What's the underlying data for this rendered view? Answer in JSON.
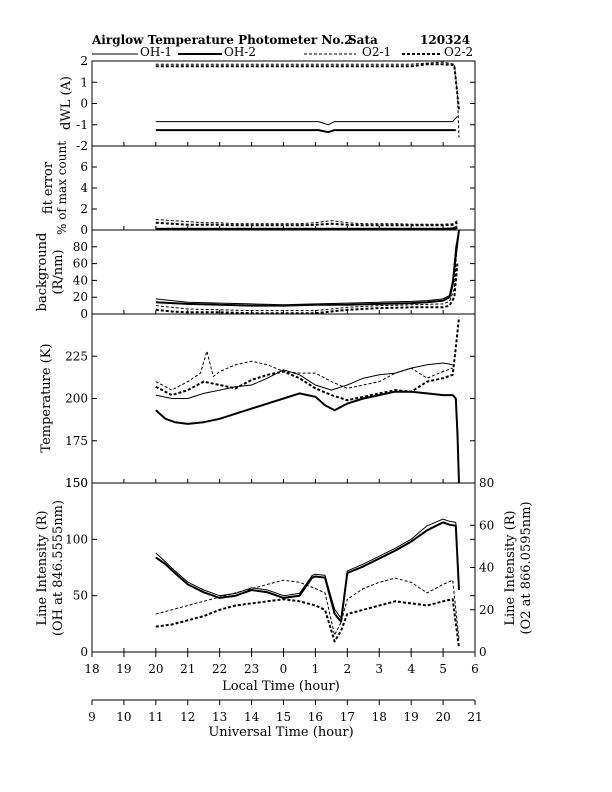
{
  "header": {
    "title": "Airglow Temperature Photometer No.2",
    "site": "Sata",
    "date": "120324"
  },
  "legend": [
    "OH-1",
    "OH-2",
    "O2-1",
    "O2-2"
  ],
  "series_styles": {
    "OH-1": {
      "color": "#000000",
      "stroke_style": "solid-thin"
    },
    "OH-2": {
      "color": "#000000",
      "stroke_style": "solid-thick"
    },
    "O2-1": {
      "color": "#000000",
      "stroke_style": "dashed-thin"
    },
    "O2-2": {
      "color": "#000000",
      "stroke_style": "dashed-thick"
    }
  },
  "x_axes": {
    "local": {
      "label": "Local Time (hour)",
      "ticks": [
        "18",
        "19",
        "20",
        "21",
        "22",
        "23",
        "0",
        "1",
        "2",
        "3",
        "4",
        "5",
        "6"
      ]
    },
    "universal": {
      "label": "Universal Time (hour)",
      "ticks": [
        "9",
        "10",
        "11",
        "12",
        "13",
        "14",
        "15",
        "16",
        "17",
        "18",
        "19",
        "20",
        "21"
      ]
    }
  },
  "chart_data": [
    {
      "type": "line",
      "panel": "dwl",
      "ylabel": "dWL (A)",
      "ylim": [
        -2,
        2
      ],
      "yticks": [
        "2",
        "1",
        "0",
        "-1",
        "-2"
      ],
      "x_unit": "Local Time (hour), values past 24 = next day",
      "series": [
        {
          "name": "OH-1",
          "x": [
            20,
            21,
            22,
            23,
            24,
            25,
            25.1,
            25.4,
            25.6,
            26,
            27,
            28,
            28.9,
            29.3,
            29.45
          ],
          "y": [
            -0.85,
            -0.85,
            -0.85,
            -0.85,
            -0.85,
            -0.85,
            -0.85,
            -1.0,
            -0.85,
            -0.85,
            -0.85,
            -0.85,
            -0.85,
            -0.85,
            -0.6
          ]
        },
        {
          "name": "OH-2",
          "x": [
            20,
            21,
            22,
            23,
            24,
            25,
            25.1,
            25.4,
            25.6,
            26,
            27,
            28,
            28.9,
            29.3,
            29.4
          ],
          "y": [
            -1.25,
            -1.25,
            -1.25,
            -1.25,
            -1.25,
            -1.25,
            -1.25,
            -1.35,
            -1.25,
            -1.25,
            -1.25,
            -1.25,
            -1.25,
            -1.25,
            -1.25
          ]
        },
        {
          "name": "O2-1",
          "x": [
            20,
            21,
            22,
            23,
            24,
            25,
            26,
            27,
            28,
            28.5,
            29,
            29.35,
            29.45,
            29.5
          ],
          "y": [
            1.85,
            1.85,
            1.85,
            1.85,
            1.85,
            1.85,
            1.85,
            1.85,
            1.85,
            1.9,
            1.95,
            1.85,
            0.5,
            -1.6
          ]
        },
        {
          "name": "O2-2",
          "x": [
            20,
            21,
            22,
            23,
            24,
            25,
            26,
            27,
            28,
            28.5,
            29,
            29.35,
            29.5
          ],
          "y": [
            1.75,
            1.75,
            1.75,
            1.75,
            1.75,
            1.75,
            1.75,
            1.75,
            1.75,
            1.85,
            1.85,
            1.8,
            -0.3
          ]
        }
      ]
    },
    {
      "type": "line",
      "panel": "fit",
      "ylabel": "fit error",
      "ylabel2": "% of max count",
      "ylim": [
        0,
        8
      ],
      "yticks": [
        "6",
        "4",
        "2",
        "0"
      ],
      "series": [
        {
          "name": "OH-1",
          "x": [
            20,
            21,
            22,
            23,
            24,
            25,
            26,
            27,
            28,
            29,
            29.3,
            29.45
          ],
          "y": [
            0.15,
            0.15,
            0.15,
            0.15,
            0.15,
            0.15,
            0.15,
            0.15,
            0.15,
            0.15,
            0.2,
            0.4
          ]
        },
        {
          "name": "OH-2",
          "x": [
            20,
            21,
            22,
            23,
            24,
            25,
            26,
            27,
            28,
            29,
            29.3,
            29.45
          ],
          "y": [
            0.1,
            0.1,
            0.1,
            0.1,
            0.1,
            0.1,
            0.1,
            0.1,
            0.1,
            0.1,
            0.1,
            0.2
          ]
        },
        {
          "name": "O2-1",
          "x": [
            20,
            20.5,
            21,
            21.5,
            22,
            22.5,
            23,
            23.5,
            24,
            24.5,
            25,
            25.5,
            26,
            26.5,
            27,
            27.5,
            28,
            28.5,
            29,
            29.3,
            29.45
          ],
          "y": [
            1.0,
            0.9,
            0.8,
            0.7,
            0.7,
            0.6,
            0.6,
            0.6,
            0.6,
            0.6,
            0.7,
            0.9,
            0.7,
            0.6,
            0.6,
            0.6,
            0.55,
            0.55,
            0.55,
            0.6,
            0.9
          ]
        },
        {
          "name": "O2-2",
          "x": [
            20,
            20.5,
            21,
            21.5,
            22,
            22.5,
            23,
            23.5,
            24,
            24.5,
            25,
            25.5,
            26,
            26.5,
            27,
            27.5,
            28,
            28.5,
            29,
            29.3,
            29.45
          ],
          "y": [
            0.7,
            0.6,
            0.5,
            0.5,
            0.5,
            0.45,
            0.45,
            0.45,
            0.45,
            0.45,
            0.5,
            0.6,
            0.5,
            0.45,
            0.45,
            0.45,
            0.45,
            0.45,
            0.45,
            0.5,
            0.7
          ]
        }
      ]
    },
    {
      "type": "line",
      "panel": "bg",
      "ylabel": "background",
      "ylabel2": "(R/nm)",
      "ylim": [
        0,
        100
      ],
      "yticks": [
        "80",
        "60",
        "40",
        "20",
        "0"
      ],
      "series": [
        {
          "name": "OH-1",
          "x": [
            20,
            20.5,
            21,
            22,
            23,
            24,
            25,
            26,
            27,
            28,
            28.5,
            29,
            29.2,
            29.3,
            29.4,
            29.5
          ],
          "y": [
            18,
            16,
            14,
            13,
            12,
            11,
            12,
            13,
            14,
            15,
            16,
            18,
            22,
            40,
            80,
            100
          ]
        },
        {
          "name": "OH-2",
          "x": [
            20,
            20.5,
            21,
            22,
            23,
            24,
            25,
            26,
            27,
            28,
            28.5,
            29,
            29.2,
            29.3,
            29.4,
            29.5
          ],
          "y": [
            14,
            13,
            12,
            11,
            10,
            10,
            11,
            11,
            12,
            13,
            14,
            16,
            20,
            35,
            70,
            100
          ]
        },
        {
          "name": "O2-1",
          "x": [
            20,
            20.5,
            21,
            22,
            23,
            24,
            25,
            25.5,
            26,
            27,
            28,
            29,
            29.2,
            29.35,
            29.45
          ],
          "y": [
            10,
            8,
            6,
            5,
            4,
            4,
            4,
            6,
            8,
            10,
            11,
            12,
            15,
            30,
            90
          ]
        },
        {
          "name": "O2-2",
          "x": [
            20,
            20.5,
            21,
            22,
            23,
            24,
            25,
            25.5,
            26,
            27,
            28,
            29,
            29.2,
            29.35,
            29.45
          ],
          "y": [
            5,
            3,
            2,
            2,
            1,
            1,
            1,
            3,
            5,
            7,
            8,
            8,
            10,
            20,
            60
          ]
        }
      ]
    },
    {
      "type": "line",
      "panel": "temp",
      "ylabel": "Temperature (K)",
      "ylim": [
        150,
        250
      ],
      "yticks": [
        "225",
        "200",
        "175",
        "150"
      ],
      "series": [
        {
          "name": "OH-1",
          "x": [
            20,
            20.5,
            21,
            21.5,
            22,
            22.5,
            23,
            23.5,
            24,
            24.5,
            25,
            25.5,
            26,
            26.5,
            27,
            27.5,
            28,
            28.5,
            29,
            29.3
          ],
          "y": [
            202,
            200,
            200,
            203,
            205,
            207,
            208,
            212,
            217,
            214,
            208,
            205,
            208,
            212,
            214,
            215,
            218,
            220,
            221,
            220
          ]
        },
        {
          "name": "OH-2",
          "x": [
            20,
            20.3,
            20.6,
            21,
            21.5,
            22,
            22.5,
            23,
            23.5,
            24,
            24.5,
            25,
            25.3,
            25.6,
            26,
            26.5,
            27,
            27.5,
            28,
            28.5,
            29,
            29.3,
            29.4,
            29.45,
            29.5
          ],
          "y": [
            193,
            188,
            186,
            185,
            186,
            188,
            191,
            194,
            197,
            200,
            203,
            201,
            196,
            193,
            197,
            200,
            202,
            204,
            204,
            203,
            202,
            202,
            200,
            180,
            150
          ]
        },
        {
          "name": "O2-1",
          "x": [
            20,
            20.5,
            21,
            21.4,
            21.6,
            21.8,
            22,
            22.5,
            23,
            23.5,
            24,
            24.5,
            25,
            25.5,
            26,
            26.5,
            27,
            27.5,
            28,
            28.5,
            29,
            29.3
          ],
          "y": [
            210,
            205,
            210,
            215,
            228,
            213,
            216,
            220,
            222,
            220,
            216,
            215,
            215,
            210,
            206,
            208,
            210,
            215,
            218,
            212,
            216,
            218
          ]
        },
        {
          "name": "O2-2",
          "x": [
            20,
            20.5,
            21,
            21.5,
            22,
            22.5,
            23,
            23.5,
            24,
            24.5,
            25,
            25.5,
            26,
            26.5,
            27,
            27.5,
            28,
            28.5,
            29,
            29.3,
            29.4,
            29.5
          ],
          "y": [
            207,
            202,
            205,
            210,
            208,
            206,
            211,
            214,
            216,
            212,
            206,
            202,
            199,
            201,
            203,
            205,
            204,
            210,
            212,
            214,
            230,
            248
          ]
        }
      ]
    },
    {
      "type": "line",
      "panel": "int",
      "ylabel": "Line Intensity (R)",
      "ylabel_sub": "(OH at 846.5555nm)",
      "ylabel_right": "Line Intensity (R)",
      "ylabel_right_sub": "(O2 at 866.0595nm)",
      "ylim": [
        0,
        150
      ],
      "ylim_right": [
        0,
        80
      ],
      "yticks": [
        "150",
        "100",
        "50",
        "0"
      ],
      "yticks_right": [
        "80",
        "60",
        "40",
        "20",
        "0"
      ],
      "series": [
        {
          "name": "OH-1",
          "axis": "left",
          "x": [
            20,
            20.3,
            20.6,
            21,
            21.5,
            22,
            22.5,
            23,
            23.5,
            24,
            24.5,
            24.9,
            25,
            25.3,
            25.6,
            25.8,
            26,
            26.5,
            27,
            27.5,
            28,
            28.5,
            29,
            29.2,
            29.4,
            29.5
          ],
          "y": [
            88,
            80,
            72,
            62,
            55,
            50,
            52,
            57,
            55,
            50,
            52,
            68,
            69,
            68,
            38,
            30,
            72,
            78,
            85,
            92,
            100,
            112,
            118,
            116,
            115,
            60
          ]
        },
        {
          "name": "OH-2",
          "axis": "left",
          "x": [
            20,
            20.3,
            20.6,
            21,
            21.5,
            22,
            22.5,
            23,
            23.5,
            24,
            24.5,
            24.9,
            25,
            25.3,
            25.6,
            25.8,
            26,
            26.5,
            27,
            27.5,
            28,
            28.5,
            29,
            29.2,
            29.4,
            29.5
          ],
          "y": [
            84,
            78,
            70,
            60,
            53,
            48,
            50,
            55,
            53,
            48,
            50,
            66,
            67,
            66,
            34,
            27,
            70,
            76,
            83,
            90,
            98,
            108,
            115,
            113,
            112,
            55
          ]
        },
        {
          "name": "O2-1",
          "axis": "right",
          "x": [
            20,
            20.5,
            21,
            21.5,
            22,
            22.5,
            23,
            23.5,
            24,
            24.5,
            25,
            25.3,
            25.6,
            25.8,
            26,
            26.5,
            27,
            27.5,
            28,
            28.5,
            29,
            29.3,
            29.5
          ],
          "y": [
            18,
            20,
            22,
            24,
            26,
            28,
            30,
            32,
            34,
            33,
            30,
            28,
            8,
            14,
            25,
            30,
            33,
            35,
            33,
            28,
            32,
            34,
            6
          ]
        },
        {
          "name": "O2-2",
          "axis": "right",
          "x": [
            20,
            20.5,
            21,
            21.5,
            22,
            22.5,
            23,
            23.5,
            24,
            24.5,
            25,
            25.3,
            25.6,
            25.8,
            26,
            26.5,
            27,
            27.5,
            28,
            28.5,
            29,
            29.3,
            29.5
          ],
          "y": [
            12,
            13,
            15,
            17,
            20,
            22,
            23,
            24,
            25,
            24,
            22,
            20,
            5,
            10,
            18,
            20,
            22,
            24,
            23,
            22,
            24,
            25,
            2
          ]
        }
      ]
    }
  ]
}
